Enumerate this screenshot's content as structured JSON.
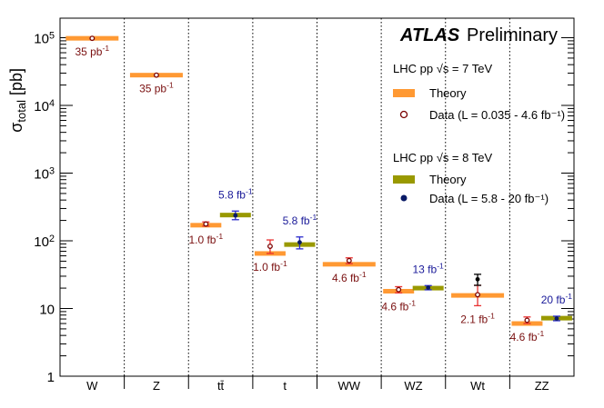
{
  "chart_data": {
    "type": "scatter",
    "title": "",
    "xlabel": "",
    "ylabel": "σ_total [pb]",
    "yscale": "log",
    "ylim": [
      1,
      200000
    ],
    "ytick_values": [
      1,
      10,
      100,
      1000,
      10000,
      100000
    ],
    "ytick_labels": [
      "1",
      "10",
      "10^2",
      "10^3",
      "10^4",
      "10^5"
    ],
    "categories": [
      "W",
      "Z",
      "tt̄",
      "t",
      "WW",
      "WZ",
      "Wt",
      "ZZ"
    ],
    "colors": {
      "theory_7tev": "#ff9933",
      "theory_8tev": "#999900",
      "data_7tev": "#7a0000",
      "data_8tev": "#0a1a66",
      "err_7tev": "#e83030",
      "err_8tev": "#2a2acc",
      "lumi_7tev": "#7a1010",
      "lumi_8tev": "#1a1a99"
    },
    "series": [
      {
        "name": "7 TeV",
        "points": [
          {
            "category": "W",
            "theory": 98000,
            "data": 98000,
            "err_lo": 98000,
            "err_hi": 98000,
            "lumi": "35 pb^-1"
          },
          {
            "category": "Z",
            "theory": 28000,
            "data": 28000,
            "err_lo": 28000,
            "err_hi": 28000,
            "lumi": "35 pb^-1"
          },
          {
            "category": "tt̄",
            "theory": 170,
            "data": 177,
            "err_lo": 165,
            "err_hi": 190,
            "lumi": "1.0 fb^-1"
          },
          {
            "category": "t",
            "theory": 65,
            "data": 83,
            "err_lo": 65,
            "err_hi": 103,
            "lumi": "1.0 fb^-1"
          },
          {
            "category": "WW",
            "theory": 45,
            "data": 51,
            "err_lo": 46,
            "err_hi": 56,
            "lumi": "4.6 fb^-1"
          },
          {
            "category": "WZ",
            "theory": 18,
            "data": 19,
            "err_lo": 17,
            "err_hi": 21,
            "lumi": "4.6 fb^-1"
          },
          {
            "category": "Wt",
            "theory": 15.6,
            "data": 16,
            "err_lo": 11,
            "err_hi": 22,
            "lumi": "2.1 fb^-1"
          },
          {
            "category": "ZZ",
            "theory": 6,
            "data": 6.7,
            "err_lo": 6.0,
            "err_hi": 7.5,
            "lumi": "4.6 fb^-1"
          }
        ]
      },
      {
        "name": "8 TeV",
        "points": [
          {
            "category": "tt̄",
            "theory": 240,
            "data": 237,
            "err_lo": 205,
            "err_hi": 275,
            "lumi": "5.8 fb^-1"
          },
          {
            "category": "t",
            "theory": 88,
            "data": 95,
            "err_lo": 76,
            "err_hi": 114,
            "lumi": "5.8 fb^-1"
          },
          {
            "category": "WZ",
            "theory": 20,
            "data": 20.3,
            "err_lo": 18.9,
            "err_hi": 21.8,
            "lumi": "13 fb^-1"
          },
          {
            "category": "Wt",
            "theory": null,
            "data": 27,
            "err_lo": 22,
            "err_hi": 32,
            "lumi": null
          },
          {
            "category": "ZZ",
            "theory": 7.2,
            "data": 7.1,
            "err_lo": 6.6,
            "err_hi": 7.7,
            "lumi": "20 fb^-1"
          }
        ]
      }
    ],
    "legend_position": "top-right"
  },
  "header": {
    "atlas": "ATLAS",
    "preliminary": "Preliminary"
  },
  "legend": {
    "group_7tev": {
      "title": "LHC pp √s = 7 TeV",
      "theory": "Theory",
      "data": "Data (L = 0.035 - 4.6 fb⁻¹)"
    },
    "group_8tev": {
      "title": "LHC pp √s = 8 TeV",
      "theory": "Theory",
      "data": "Data (L = 5.8 - 20 fb⁻¹)"
    }
  }
}
